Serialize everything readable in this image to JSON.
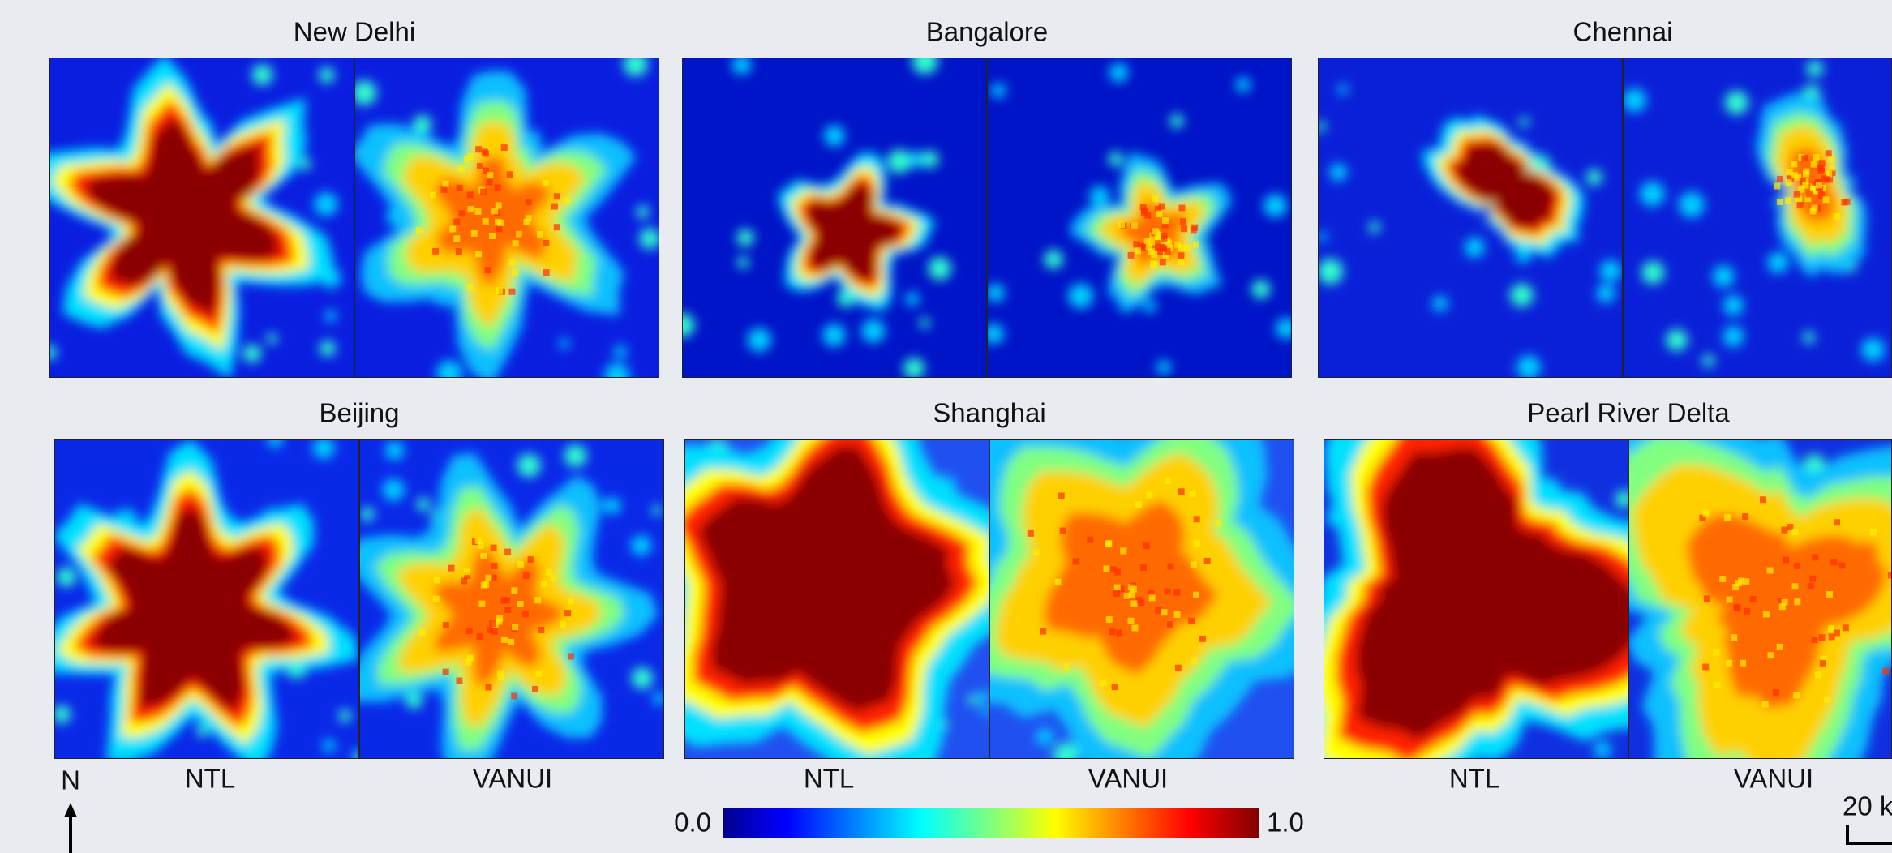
{
  "panels": [
    {
      "title": "New Delhi"
    },
    {
      "title": "Bangalore"
    },
    {
      "title": "Chennai"
    },
    {
      "title": "Beijing"
    },
    {
      "title": "Shanghai"
    },
    {
      "title": "Pearl River Delta"
    }
  ],
  "column_labels": [
    "NTL",
    "VANUI",
    "NTL",
    "VANUI",
    "NTL",
    "VANUI"
  ],
  "north_label": "N",
  "colorbar": {
    "ticks": [
      {
        "value": 0,
        "label": "0.0"
      },
      {
        "value": 1,
        "label": "1.0"
      }
    ]
  },
  "scale_label": "20 k"
}
